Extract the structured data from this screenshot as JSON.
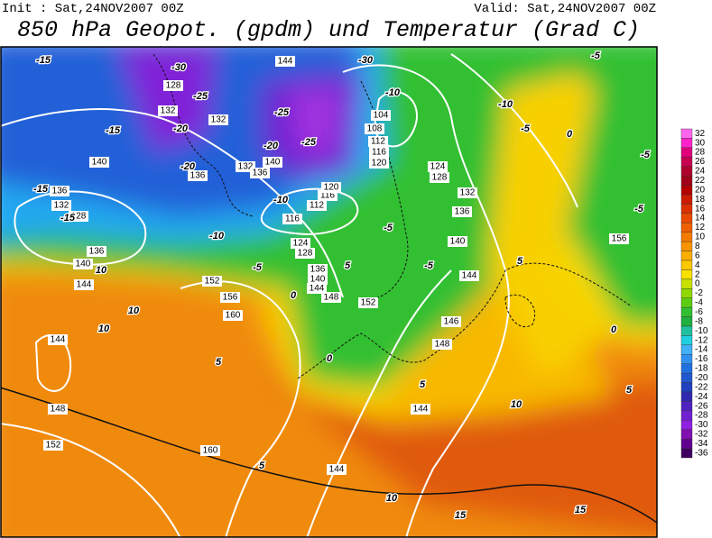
{
  "header": {
    "init": "Init : Sat,24NOV2007 00Z",
    "valid": "Valid: Sat,24NOV2007 00Z",
    "title": "850 hPa Geopot. (gpdm) und Temperatur (Grad C)"
  },
  "colorbar": {
    "levels": [
      32,
      30,
      28,
      26,
      24,
      22,
      20,
      18,
      16,
      14,
      12,
      10,
      8,
      6,
      4,
      2,
      0,
      -2,
      -4,
      -6,
      -8,
      -10,
      -12,
      -14,
      -16,
      -18,
      -20,
      -22,
      -24,
      -26,
      -28,
      -30,
      -32,
      -34,
      -36
    ],
    "colors": [
      "#ff66ee",
      "#ff22cc",
      "#e0007a",
      "#c80050",
      "#b0002c",
      "#a00018",
      "#b40000",
      "#cc1a00",
      "#dc3000",
      "#e84800",
      "#f06000",
      "#f47a00",
      "#f89400",
      "#fcae00",
      "#fcc800",
      "#f8e000",
      "#c8e000",
      "#90d800",
      "#5ccc10",
      "#30c030",
      "#20b040",
      "#20c0a0",
      "#20d0e0",
      "#40b0f8",
      "#3090f0",
      "#2070e0",
      "#2058d0",
      "#2040c0",
      "#3028b0",
      "#5020c0",
      "#7020d0",
      "#9020e0",
      "#8010b0",
      "#600090",
      "#400060"
    ]
  },
  "contour_labels": {
    "temperature": [
      "-15",
      "-30",
      "-25",
      "-20",
      "-15",
      "-20",
      "-15",
      "-15",
      "-10",
      "-5",
      "0",
      "5",
      "10",
      "10",
      "10",
      "5",
      "0",
      "5",
      "10",
      "5",
      "10",
      "15",
      "15",
      "5",
      "0",
      "5",
      "0",
      "-5",
      "-10",
      "-5",
      "-5",
      "-5",
      "-25",
      "-25",
      "-20",
      "-10",
      "-30",
      "-5",
      "-5",
      "-10"
    ],
    "geopotential": [
      "128",
      "132",
      "132",
      "140",
      "136",
      "132",
      "128",
      "136",
      "140",
      "144",
      "152",
      "156",
      "160",
      "144",
      "148",
      "152",
      "160",
      "144",
      "144",
      "148",
      "146",
      "152",
      "148",
      "144",
      "140",
      "136",
      "128",
      "124",
      "116",
      "112",
      "116",
      "120",
      "104",
      "108",
      "112",
      "116",
      "120",
      "124",
      "128",
      "132",
      "136",
      "140",
      "144",
      "156",
      "144",
      "136",
      "132",
      "140",
      "136"
    ]
  }
}
